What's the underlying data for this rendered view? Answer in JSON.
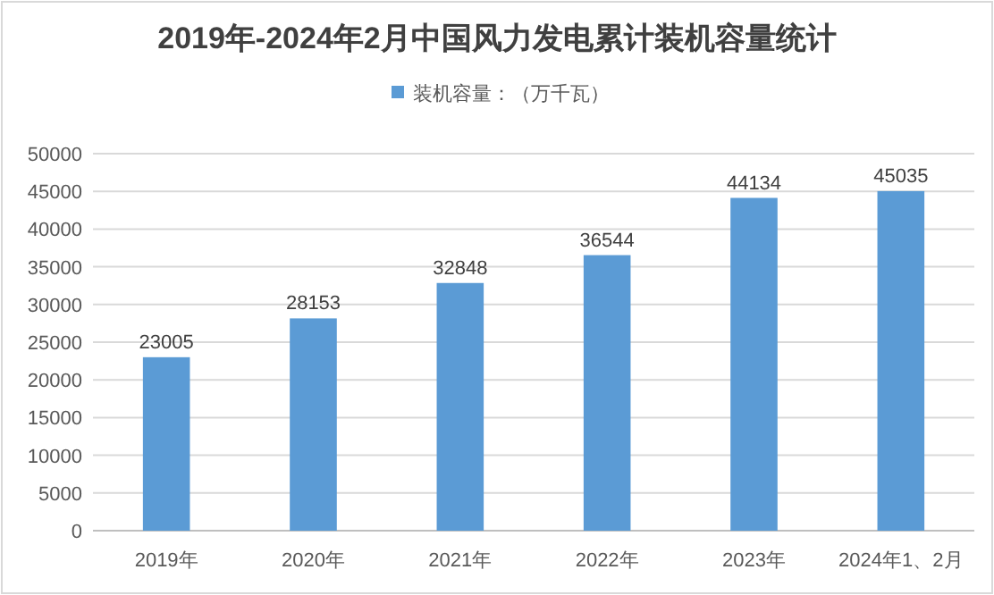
{
  "chart_data": {
    "type": "bar",
    "title": "2019年-2024年2月中国风力发电累计装机容量统计",
    "categories": [
      "2019年",
      "2020年",
      "2021年",
      "2022年",
      "2023年",
      "2024年1、2月"
    ],
    "series": [
      {
        "name": "装机容量：（万千瓦）",
        "color": "#5b9bd5",
        "values": [
          23005,
          28153,
          32848,
          36544,
          44134,
          45035
        ]
      }
    ],
    "ylim": [
      0,
      50000
    ],
    "yticks": [
      0,
      5000,
      10000,
      15000,
      20000,
      25000,
      30000,
      35000,
      40000,
      45000,
      50000
    ],
    "grid": "y",
    "legend": "top",
    "data_labels": true
  }
}
